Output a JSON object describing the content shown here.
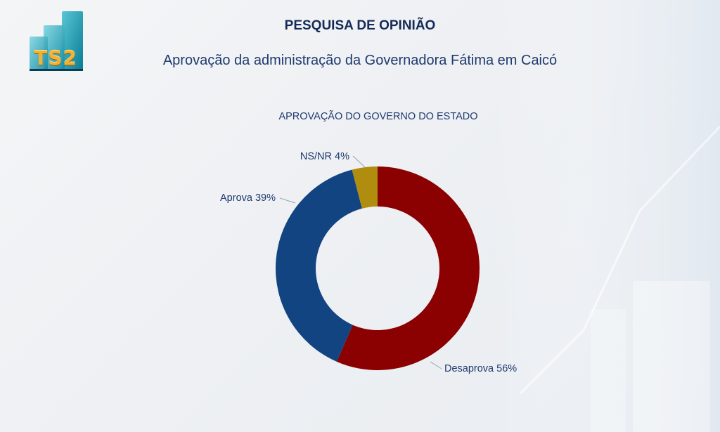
{
  "header": {
    "logo_text": "TS2",
    "title": "PESQUISA DE OPINIÃO",
    "subtitle": "Aprovação da administração da Governadora Fátima em Caicó"
  },
  "colors": {
    "desaprova": "#8b0000",
    "aprova": "#114481",
    "nsnr": "#b08d0e",
    "text": "#1e3a6e"
  },
  "chart_data": {
    "type": "pie",
    "donut": true,
    "title": "APROVAÇÃO DO GOVERNO DO ESTADO",
    "series": [
      {
        "name": "Desaprova",
        "value": 56,
        "label": "Desaprova 56%"
      },
      {
        "name": "Aprova",
        "value": 39,
        "label": "Aprova 39%"
      },
      {
        "name": "NS/NR",
        "value": 4,
        "label": "NS/NR 4%"
      }
    ],
    "legend": "none"
  }
}
